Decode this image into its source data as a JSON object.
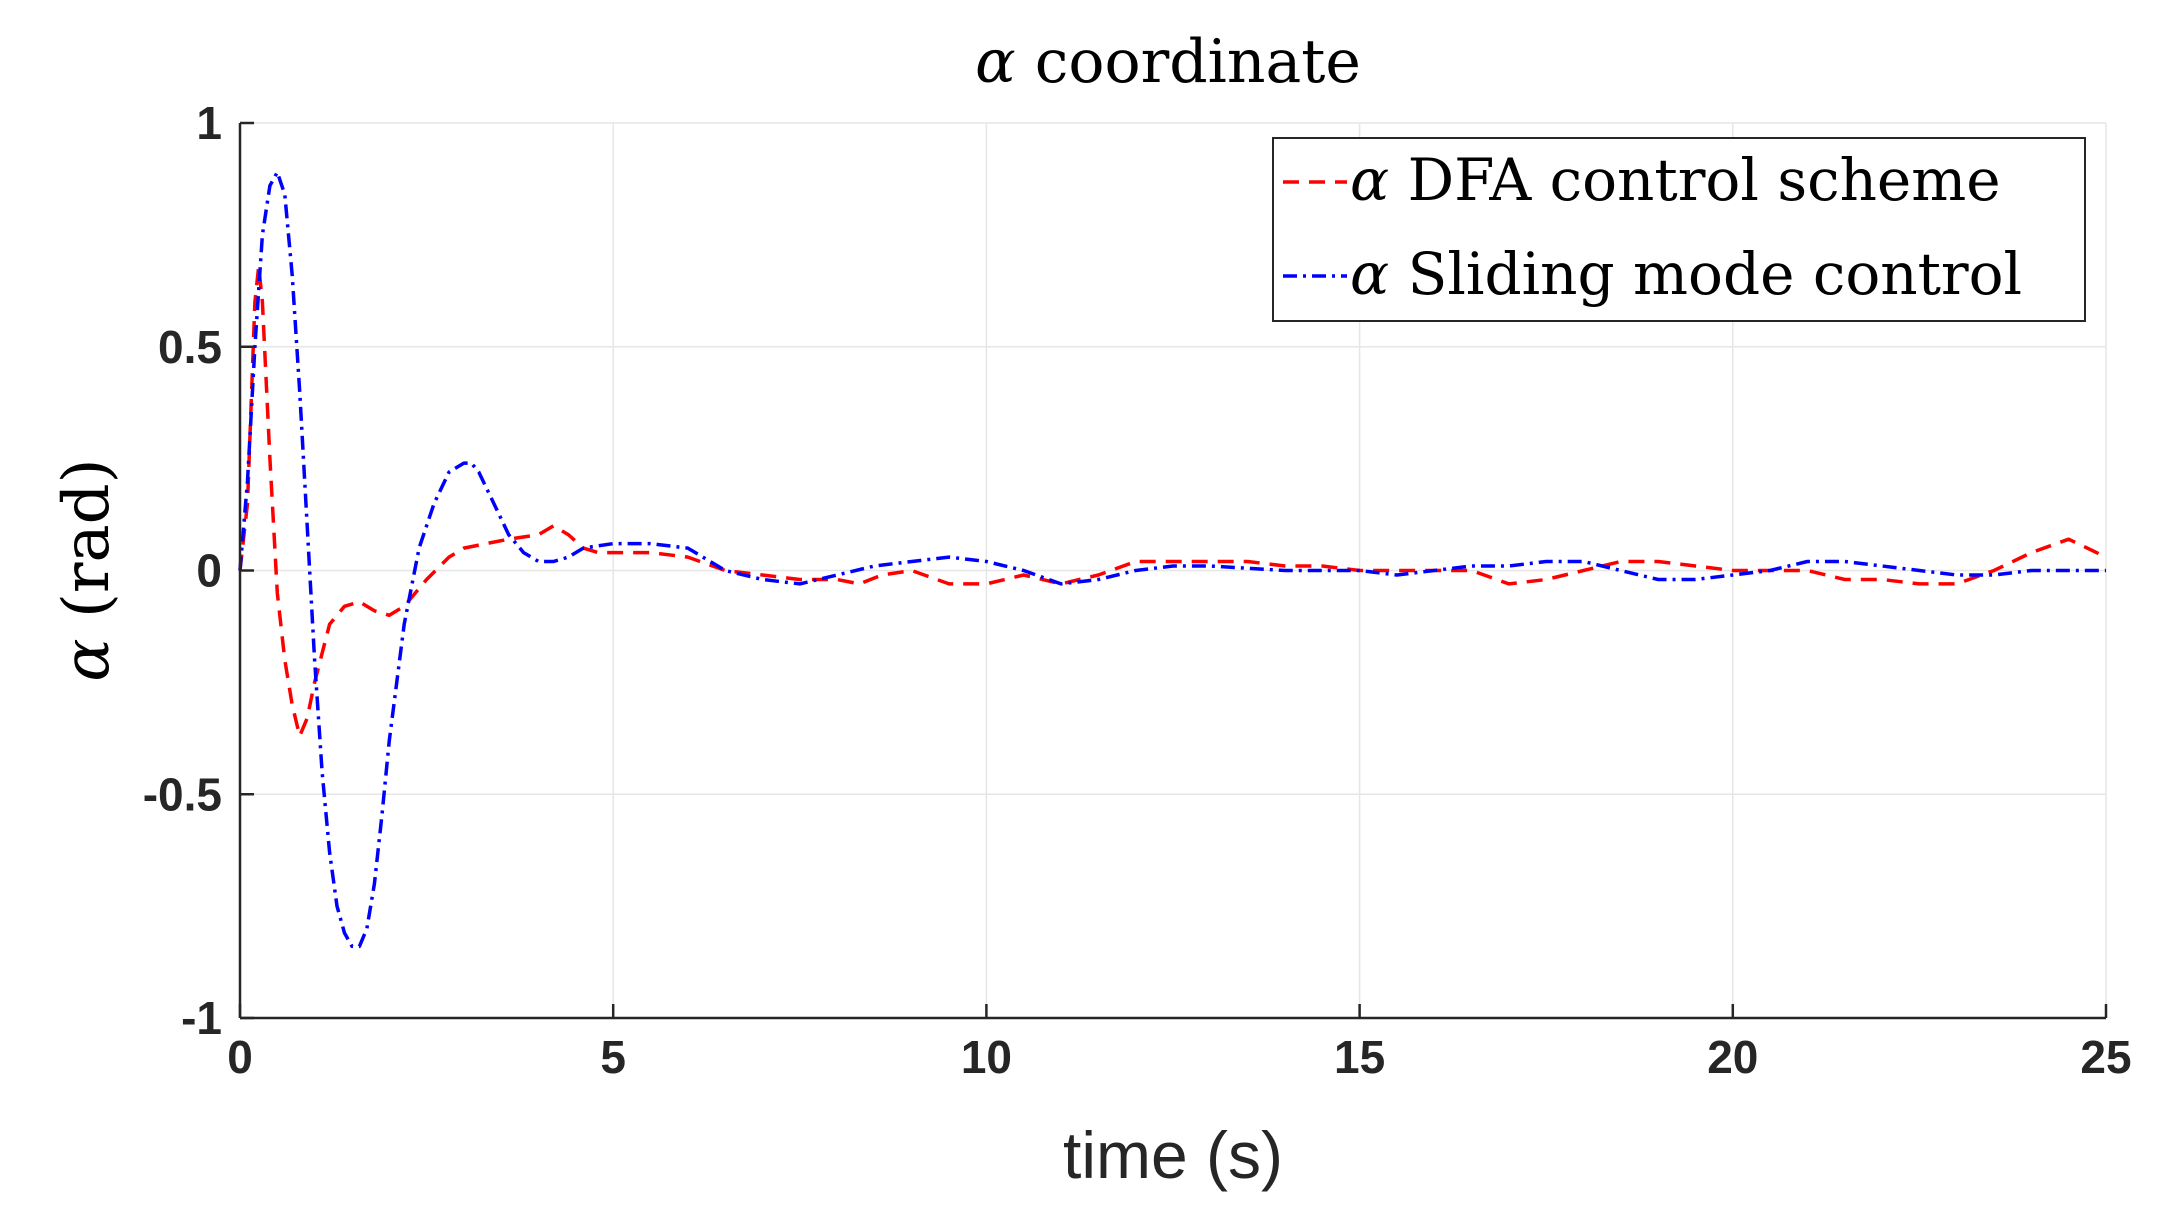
{
  "chart_data": {
    "type": "line",
    "title": {
      "symbol": "α",
      "text": "coordinate"
    },
    "xlabel": "time (s)",
    "ylabel": {
      "symbol": "α",
      "text": "(rad)"
    },
    "xlim": [
      0,
      25
    ],
    "ylim": [
      -1,
      1
    ],
    "xticks": [
      "0",
      "5",
      "10",
      "15",
      "20",
      "25"
    ],
    "yticks": [
      "1",
      "0.5",
      "0",
      "-0.5",
      "-1"
    ],
    "grid": true,
    "legend_position": "top-right",
    "series": [
      {
        "name": "α DFA control scheme",
        "symbol": "α",
        "label": "DFA control scheme",
        "color": "#ff0000",
        "style": "dashed",
        "x": [
          0,
          0.1,
          0.2,
          0.25,
          0.3,
          0.4,
          0.5,
          0.6,
          0.7,
          0.8,
          0.9,
          1.0,
          1.2,
          1.4,
          1.6,
          1.8,
          2.0,
          2.2,
          2.5,
          2.8,
          3.0,
          3.3,
          3.6,
          4.0,
          4.2,
          4.4,
          4.6,
          4.8,
          5.0,
          5.5,
          6.0,
          6.5,
          7.0,
          7.5,
          8.0,
          8.3,
          8.6,
          9.0,
          9.5,
          10.0,
          10.5,
          11.0,
          11.5,
          12.0,
          12.5,
          13.0,
          13.5,
          14.0,
          14.5,
          15.0,
          15.5,
          16.0,
          16.5,
          17.0,
          17.5,
          18.0,
          18.5,
          19.0,
          19.5,
          20.0,
          20.5,
          21.0,
          21.5,
          22.0,
          22.5,
          23.0,
          23.5,
          24.0,
          24.5,
          25.0
        ],
        "y": [
          0,
          0.15,
          0.6,
          0.68,
          0.6,
          0.25,
          -0.05,
          -0.2,
          -0.3,
          -0.37,
          -0.33,
          -0.25,
          -0.12,
          -0.08,
          -0.07,
          -0.09,
          -0.1,
          -0.08,
          -0.02,
          0.03,
          0.05,
          0.06,
          0.07,
          0.08,
          0.1,
          0.08,
          0.05,
          0.04,
          0.04,
          0.04,
          0.03,
          0.0,
          -0.01,
          -0.02,
          -0.02,
          -0.03,
          -0.01,
          0.0,
          -0.03,
          -0.03,
          -0.01,
          -0.03,
          -0.01,
          0.02,
          0.02,
          0.02,
          0.02,
          0.01,
          0.01,
          0.0,
          0.0,
          0.0,
          0.0,
          -0.03,
          -0.02,
          0.0,
          0.02,
          0.02,
          0.01,
          0.0,
          0.0,
          0.0,
          -0.02,
          -0.02,
          -0.03,
          -0.03,
          0.0,
          0.04,
          0.07,
          0.03
        ]
      },
      {
        "name": "α Sliding mode control",
        "symbol": "α",
        "label": "Sliding mode control",
        "color": "#0000ff",
        "style": "dashdot",
        "x": [
          0,
          0.1,
          0.2,
          0.3,
          0.4,
          0.5,
          0.6,
          0.7,
          0.8,
          0.9,
          1.0,
          1.1,
          1.2,
          1.3,
          1.4,
          1.5,
          1.6,
          1.7,
          1.8,
          1.9,
          2.0,
          2.2,
          2.4,
          2.6,
          2.8,
          3.0,
          3.1,
          3.2,
          3.4,
          3.6,
          3.8,
          4.0,
          4.2,
          4.4,
          4.6,
          5.0,
          5.5,
          6.0,
          6.5,
          7.0,
          7.5,
          8.0,
          8.5,
          9.0,
          9.5,
          10.0,
          10.5,
          11.0,
          11.5,
          12.0,
          12.5,
          13.0,
          14.0,
          15.0,
          15.5,
          16.0,
          16.5,
          17.0,
          17.5,
          18.0,
          18.5,
          19.0,
          19.5,
          20.0,
          20.5,
          21.0,
          21.5,
          22.0,
          22.5,
          23.0,
          23.5,
          24.0,
          25.0
        ],
        "y": [
          0,
          0.2,
          0.5,
          0.75,
          0.86,
          0.89,
          0.84,
          0.66,
          0.4,
          0.1,
          -0.2,
          -0.45,
          -0.63,
          -0.75,
          -0.81,
          -0.84,
          -0.84,
          -0.8,
          -0.7,
          -0.55,
          -0.38,
          -0.12,
          0.05,
          0.15,
          0.22,
          0.24,
          0.24,
          0.22,
          0.15,
          0.08,
          0.04,
          0.02,
          0.02,
          0.03,
          0.05,
          0.06,
          0.06,
          0.05,
          0.0,
          -0.02,
          -0.03,
          -0.01,
          0.01,
          0.02,
          0.03,
          0.02,
          0.0,
          -0.03,
          -0.02,
          0.0,
          0.01,
          0.01,
          0.0,
          0.0,
          -0.01,
          0.0,
          0.01,
          0.01,
          0.02,
          0.02,
          0.0,
          -0.02,
          -0.02,
          -0.01,
          0.0,
          0.02,
          0.02,
          0.01,
          0.0,
          -0.01,
          -0.01,
          0.0,
          0.0
        ]
      }
    ]
  }
}
